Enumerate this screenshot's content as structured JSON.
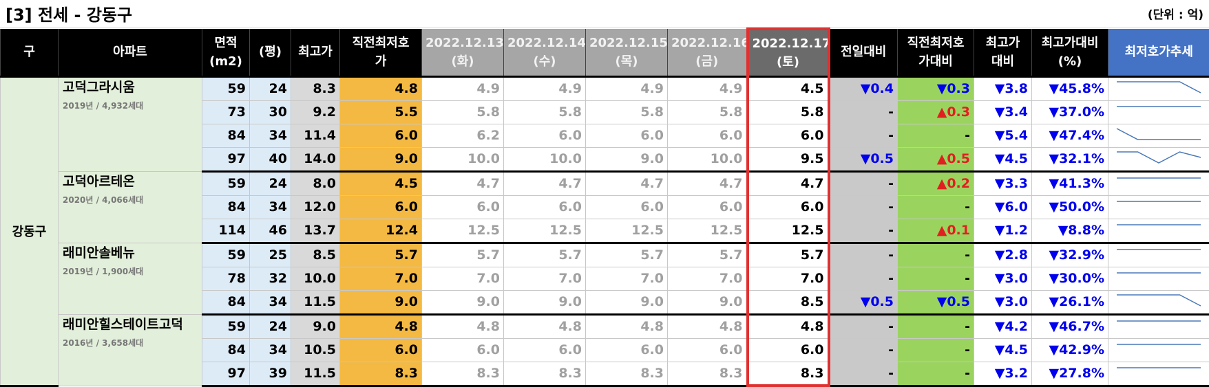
{
  "title": "[3] 전세 - 강동구",
  "unit": "(단위 : 억)",
  "header": [
    "구",
    "아파트",
    "면적\n(m2)",
    "(평)",
    "최고가",
    "직전최저호\n가",
    "2022.12.13\n(화)",
    "2022.12.14\n(수)",
    "2022.12.15\n(목)",
    "2022.12.16\n(금)",
    "2022.12.17\n(토)",
    "전일대비",
    "직전최저호\n가대비",
    "최고가\n대비",
    "최고가대비\n(%)",
    "최저호가추세"
  ],
  "district": "강동구",
  "groups": [
    {
      "name": "고덕그라시움",
      "info": "2019년 / 4,932세대",
      "rows": [
        {
          "area": 59,
          "pyeong": 24,
          "max": "8.3",
          "prev_low": "4.8",
          "prices": [
            "4.9",
            "4.9",
            "4.9",
            "4.9",
            "4.5"
          ],
          "day_change": "▼0.4",
          "prev_low_change": "▼0.3",
          "max_change": "▼3.8",
          "max_change_pct": "▼45.8%"
        },
        {
          "area": 73,
          "pyeong": 30,
          "max": "9.2",
          "prev_low": "5.5",
          "prices": [
            "5.8",
            "5.8",
            "5.8",
            "5.8",
            "5.8"
          ],
          "day_change": "-",
          "prev_low_change": "▲0.3",
          "max_change": "▼3.4",
          "max_change_pct": "▼37.0%"
        },
        {
          "area": 84,
          "pyeong": 34,
          "max": "11.4",
          "prev_low": "6.0",
          "prices": [
            "6.2",
            "6.0",
            "6.0",
            "6.0",
            "6.0"
          ],
          "day_change": "-",
          "prev_low_change": "-",
          "max_change": "▼5.4",
          "max_change_pct": "▼47.4%"
        },
        {
          "area": 97,
          "pyeong": 40,
          "max": "14.0",
          "prev_low": "9.0",
          "prices": [
            "10.0",
            "10.0",
            "9.0",
            "10.0",
            "9.5"
          ],
          "day_change": "▼0.5",
          "prev_low_change": "▲0.5",
          "max_change": "▼4.5",
          "max_change_pct": "▼32.1%"
        }
      ]
    },
    {
      "name": "고덕아르테온",
      "info": "2020년 / 4,066세대",
      "rows": [
        {
          "area": 59,
          "pyeong": 24,
          "max": "8.0",
          "prev_low": "4.5",
          "prices": [
            "4.7",
            "4.7",
            "4.7",
            "4.7",
            "4.7"
          ],
          "day_change": "-",
          "prev_low_change": "▲0.2",
          "max_change": "▼3.3",
          "max_change_pct": "▼41.3%"
        },
        {
          "area": 84,
          "pyeong": 34,
          "max": "12.0",
          "prev_low": "6.0",
          "prices": [
            "6.0",
            "6.0",
            "6.0",
            "6.0",
            "6.0"
          ],
          "day_change": "-",
          "prev_low_change": "-",
          "max_change": "▼6.0",
          "max_change_pct": "▼50.0%"
        },
        {
          "area": 114,
          "pyeong": 46,
          "max": "13.7",
          "prev_low": "12.4",
          "prices": [
            "12.5",
            "12.5",
            "12.5",
            "12.5",
            "12.5"
          ],
          "day_change": "-",
          "prev_low_change": "▲0.1",
          "max_change": "▼1.2",
          "max_change_pct": "▼8.8%"
        }
      ]
    },
    {
      "name": "래미안솔베뉴",
      "info": "2019년 / 1,900세대",
      "rows": [
        {
          "area": 59,
          "pyeong": 25,
          "max": "8.5",
          "prev_low": "5.7",
          "prices": [
            "5.7",
            "5.7",
            "5.7",
            "5.7",
            "5.7"
          ],
          "day_change": "-",
          "prev_low_change": "-",
          "max_change": "▼2.8",
          "max_change_pct": "▼32.9%"
        },
        {
          "area": 78,
          "pyeong": 32,
          "max": "10.0",
          "prev_low": "7.0",
          "prices": [
            "7.0",
            "7.0",
            "7.0",
            "7.0",
            "7.0"
          ],
          "day_change": "-",
          "prev_low_change": "-",
          "max_change": "▼3.0",
          "max_change_pct": "▼30.0%"
        },
        {
          "area": 84,
          "pyeong": 34,
          "max": "11.5",
          "prev_low": "9.0",
          "prices": [
            "9.0",
            "9.0",
            "9.0",
            "9.0",
            "8.5"
          ],
          "day_change": "▼0.5",
          "prev_low_change": "▼0.5",
          "max_change": "▼3.0",
          "max_change_pct": "▼26.1%"
        }
      ]
    },
    {
      "name": "래미안힐스테이트고덕",
      "info": "2016년 / 3,658세대",
      "rows": [
        {
          "area": 59,
          "pyeong": 24,
          "max": "9.0",
          "prev_low": "4.8",
          "prices": [
            "4.8",
            "4.8",
            "4.8",
            "4.8",
            "4.8"
          ],
          "day_change": "-",
          "prev_low_change": "-",
          "max_change": "▼4.2",
          "max_change_pct": "▼46.7%"
        },
        {
          "area": 84,
          "pyeong": 34,
          "max": "10.5",
          "prev_low": "6.0",
          "prices": [
            "6.0",
            "6.0",
            "6.0",
            "6.0",
            "6.0"
          ],
          "day_change": "-",
          "prev_low_change": "-",
          "max_change": "▼4.5",
          "max_change_pct": "▼42.9%"
        },
        {
          "area": 97,
          "pyeong": 39,
          "max": "11.5",
          "prev_low": "8.3",
          "prices": [
            "8.3",
            "8.3",
            "8.3",
            "8.3",
            "8.3"
          ],
          "day_change": "-",
          "prev_low_change": "-",
          "max_change": "▼3.2",
          "max_change_pct": "▼27.8%"
        }
      ]
    }
  ]
}
